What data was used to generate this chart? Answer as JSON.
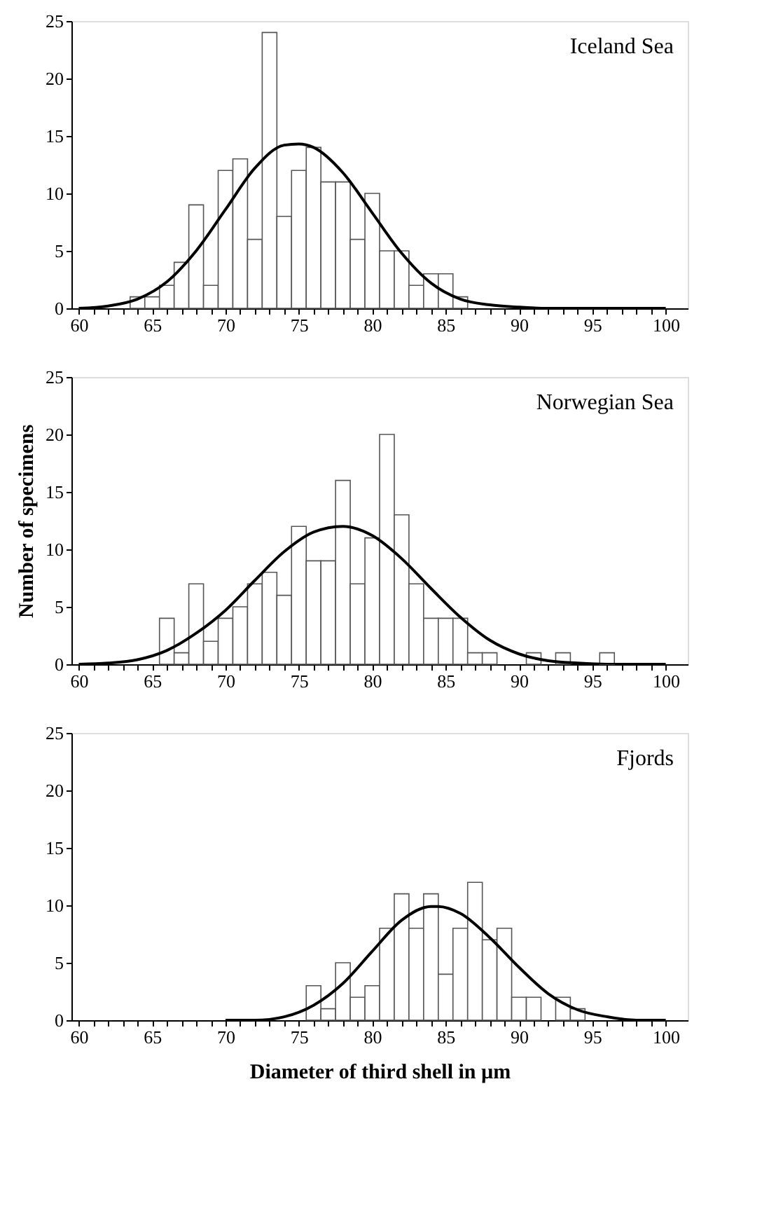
{
  "chart_data": [
    {
      "type": "histogram",
      "annotations": [
        "Iceland Sea"
      ],
      "xlim": [
        59.5,
        101.5
      ],
      "ylim": [
        0,
        25
      ],
      "yticks": [
        0,
        5,
        10,
        15,
        20,
        25
      ],
      "grid": false,
      "xticks": [
        60,
        {
          "value": 61,
          "label": null
        },
        {
          "value": 62,
          "label": null
        },
        {
          "value": 63,
          "label": null
        },
        {
          "value": 64,
          "label": null
        },
        65,
        {
          "value": 66,
          "label": null
        },
        {
          "value": 67,
          "label": null
        },
        {
          "value": 68,
          "label": null
        },
        {
          "value": 69,
          "label": null
        },
        70,
        {
          "value": 71,
          "label": null
        },
        {
          "value": 72,
          "label": null
        },
        {
          "value": 73,
          "label": null
        },
        {
          "value": 74,
          "label": null
        },
        75,
        {
          "value": 76,
          "label": null
        },
        {
          "value": 77,
          "label": null
        },
        {
          "value": 78,
          "label": null
        },
        {
          "value": 79,
          "label": null
        },
        80,
        {
          "value": 81,
          "label": null
        },
        {
          "value": 82,
          "label": null
        },
        {
          "value": 83,
          "label": null
        },
        {
          "value": 84,
          "label": null
        },
        85,
        {
          "value": 86,
          "label": null
        },
        {
          "value": 87,
          "label": null
        },
        {
          "value": 88,
          "label": null
        },
        {
          "value": 89,
          "label": null
        },
        90,
        {
          "value": 91,
          "label": null
        },
        {
          "value": 92,
          "label": null
        },
        {
          "value": 93,
          "label": null
        },
        {
          "value": 94,
          "label": null
        },
        95,
        {
          "value": 96,
          "label": null
        },
        {
          "value": 97,
          "label": null
        },
        {
          "value": 98,
          "label": null
        },
        {
          "value": 99,
          "label": null
        },
        100
      ],
      "series": [
        {
          "type": "histogram",
          "color": "#ffffff",
          "bins": [
            63.5,
            64.5,
            65.5,
            66.5,
            67.5,
            68.5,
            69.5,
            70.5,
            71.5,
            72.5,
            73.5,
            74.5,
            75.5,
            76.5,
            77.5,
            78.5,
            79.5,
            80.5,
            81.5,
            82.5,
            83.5,
            84.5,
            85.5,
            86.5
          ],
          "values": [
            1,
            1,
            2,
            4,
            9,
            2,
            12,
            13,
            6,
            24,
            8,
            12,
            14,
            11,
            11,
            6,
            10,
            5,
            5,
            2,
            3,
            3,
            1
          ]
        },
        {
          "type": "line",
          "color": "#000000",
          "x": [
            60,
            62,
            64,
            66,
            68,
            70,
            72,
            74,
            75,
            76,
            78,
            80,
            82,
            84,
            86,
            88,
            90,
            92,
            100
          ],
          "values": [
            0,
            0.2,
            0.8,
            2.3,
            5,
            8.6,
            12.2,
            14.2,
            14.3,
            14,
            11.8,
            8.3,
            4.8,
            2.2,
            0.8,
            0.3,
            0.1,
            0,
            0
          ]
        }
      ]
    },
    {
      "type": "histogram",
      "annotations": [
        "Norwegian Sea"
      ],
      "ylabel": "Number of specimens",
      "xlim": [
        59.5,
        101.5
      ],
      "ylim": [
        0,
        25
      ],
      "yticks": [
        0,
        5,
        10,
        15,
        20,
        25
      ],
      "grid": false,
      "xticks": [
        60,
        {
          "value": 61,
          "label": null
        },
        {
          "value": 62,
          "label": null
        },
        {
          "value": 63,
          "label": null
        },
        {
          "value": 64,
          "label": null
        },
        65,
        {
          "value": 66,
          "label": null
        },
        {
          "value": 67,
          "label": null
        },
        {
          "value": 68,
          "label": null
        },
        {
          "value": 69,
          "label": null
        },
        70,
        {
          "value": 71,
          "label": null
        },
        {
          "value": 72,
          "label": null
        },
        {
          "value": 73,
          "label": null
        },
        {
          "value": 74,
          "label": null
        },
        75,
        {
          "value": 76,
          "label": null
        },
        {
          "value": 77,
          "label": null
        },
        {
          "value": 78,
          "label": null
        },
        {
          "value": 79,
          "label": null
        },
        80,
        {
          "value": 81,
          "label": null
        },
        {
          "value": 82,
          "label": null
        },
        {
          "value": 83,
          "label": null
        },
        {
          "value": 84,
          "label": null
        },
        85,
        {
          "value": 86,
          "label": null
        },
        {
          "value": 87,
          "label": null
        },
        {
          "value": 88,
          "label": null
        },
        {
          "value": 89,
          "label": null
        },
        90,
        {
          "value": 91,
          "label": null
        },
        {
          "value": 92,
          "label": null
        },
        {
          "value": 93,
          "label": null
        },
        {
          "value": 94,
          "label": null
        },
        95,
        {
          "value": 96,
          "label": null
        },
        {
          "value": 97,
          "label": null
        },
        {
          "value": 98,
          "label": null
        },
        {
          "value": 99,
          "label": null
        },
        100
      ],
      "series": [
        {
          "type": "histogram",
          "color": "#ffffff",
          "bins": [
            65.5,
            66.5,
            67.5,
            68.5,
            69.5,
            70.5,
            71.5,
            72.5,
            73.5,
            74.5,
            75.5,
            76.5,
            77.5,
            78.5,
            79.5,
            80.5,
            81.5,
            82.5,
            83.5,
            84.5,
            85.5,
            86.5,
            87.5,
            88.5,
            89.5,
            90.5,
            91.5,
            92.5,
            93.5,
            94.5,
            95.5,
            96.5
          ],
          "values": [
            4,
            1,
            7,
            2,
            4,
            5,
            7,
            8,
            6,
            12,
            9,
            9,
            16,
            7,
            11,
            20,
            13,
            7,
            4,
            4,
            4,
            1,
            1,
            0,
            0,
            1,
            0,
            1,
            0,
            0,
            1
          ]
        },
        {
          "type": "line",
          "color": "#000000",
          "x": [
            60,
            62,
            64,
            66,
            68,
            70,
            72,
            74,
            76,
            78,
            80,
            82,
            84,
            86,
            88,
            90,
            92,
            94,
            96,
            100
          ],
          "values": [
            0,
            0.1,
            0.4,
            1.2,
            2.7,
            4.7,
            7.3,
            9.8,
            11.5,
            12,
            11.2,
            9.2,
            6.6,
            4.1,
            2.1,
            0.9,
            0.3,
            0.1,
            0,
            0
          ]
        }
      ]
    },
    {
      "type": "histogram",
      "annotations": [
        "Fjords"
      ],
      "xlabel": "Diameter of third shell in µm",
      "xlim": [
        59.5,
        101.5
      ],
      "ylim": [
        0,
        25
      ],
      "yticks": [
        0,
        5,
        10,
        15,
        20,
        25
      ],
      "grid": false,
      "xticks": [
        60,
        {
          "value": 61,
          "label": null
        },
        {
          "value": 62,
          "label": null
        },
        {
          "value": 63,
          "label": null
        },
        {
          "value": 64,
          "label": null
        },
        65,
        {
          "value": 66,
          "label": null
        },
        {
          "value": 67,
          "label": null
        },
        {
          "value": 68,
          "label": null
        },
        {
          "value": 69,
          "label": null
        },
        70,
        {
          "value": 71,
          "label": null
        },
        {
          "value": 72,
          "label": null
        },
        {
          "value": 73,
          "label": null
        },
        {
          "value": 74,
          "label": null
        },
        75,
        {
          "value": 76,
          "label": null
        },
        {
          "value": 77,
          "label": null
        },
        {
          "value": 78,
          "label": null
        },
        {
          "value": 79,
          "label": null
        },
        80,
        {
          "value": 81,
          "label": null
        },
        {
          "value": 82,
          "label": null
        },
        {
          "value": 83,
          "label": null
        },
        {
          "value": 84,
          "label": null
        },
        85,
        {
          "value": 86,
          "label": null
        },
        {
          "value": 87,
          "label": null
        },
        {
          "value": 88,
          "label": null
        },
        {
          "value": 89,
          "label": null
        },
        90,
        {
          "value": 91,
          "label": null
        },
        {
          "value": 92,
          "label": null
        },
        {
          "value": 93,
          "label": null
        },
        {
          "value": 94,
          "label": null
        },
        95,
        {
          "value": 96,
          "label": null
        },
        {
          "value": 97,
          "label": null
        },
        {
          "value": 98,
          "label": null
        },
        {
          "value": 99,
          "label": null
        },
        100
      ],
      "series": [
        {
          "type": "histogram",
          "color": "#ffffff",
          "bins": [
            75.5,
            76.5,
            77.5,
            78.5,
            79.5,
            80.5,
            81.5,
            82.5,
            83.5,
            84.5,
            85.5,
            86.5,
            87.5,
            88.5,
            89.5,
            90.5,
            91.5,
            92.5,
            93.5,
            94.5
          ],
          "values": [
            3,
            1,
            5,
            2,
            3,
            8,
            11,
            8,
            11,
            4,
            8,
            12,
            7,
            8,
            2,
            2,
            0,
            2,
            1
          ]
        },
        {
          "type": "line",
          "color": "#000000",
          "x": [
            70,
            72,
            74,
            76,
            78,
            80,
            82,
            84,
            84.5,
            86,
            88,
            90,
            92,
            94,
            96,
            98,
            100
          ],
          "values": [
            0,
            0,
            0.3,
            1.3,
            3.2,
            6,
            8.7,
            9.9,
            9.9,
            9.3,
            7.2,
            4.6,
            2.3,
            0.9,
            0.3,
            0,
            0
          ]
        }
      ]
    }
  ]
}
